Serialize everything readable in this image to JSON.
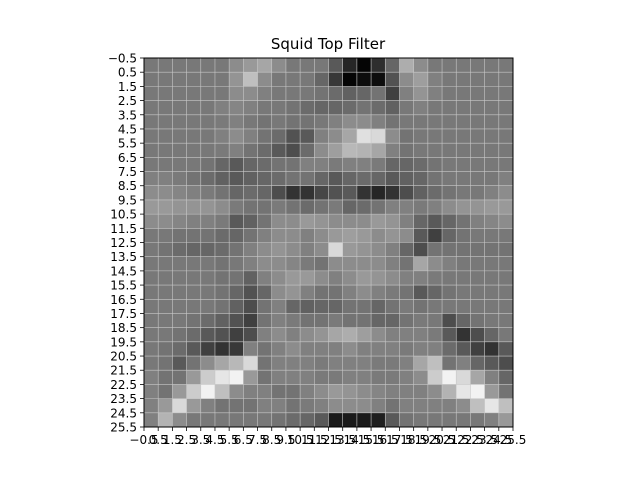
{
  "chart_data": {
    "type": "heatmap",
    "title": "Squid Top Filter",
    "xlabel": "",
    "ylabel": "",
    "colormap": "gray",
    "grid": true,
    "grid_color": "#c8c8c8",
    "x_tick_labels": [
      "−0.5",
      "0.5",
      "1.5",
      "2.5",
      "3.5",
      "4.5",
      "5.5",
      "6.5",
      "7.5",
      "8.5",
      "9.5",
      "10.5",
      "11.5",
      "12.5",
      "13.5",
      "14.5",
      "15.5",
      "16.5",
      "17.5",
      "18.5",
      "19.5",
      "20.5",
      "21.5",
      "22.5",
      "23.5",
      "24.5",
      "25.5"
    ],
    "y_tick_labels": [
      "−0.5",
      "0.5",
      "1.5",
      "2.5",
      "3.5",
      "4.5",
      "5.5",
      "6.5",
      "7.5",
      "8.5",
      "9.5",
      "10.5",
      "11.5",
      "12.5",
      "13.5",
      "14.5",
      "15.5",
      "16.5",
      "17.5",
      "18.5",
      "19.5",
      "20.5",
      "21.5",
      "22.5",
      "23.5",
      "24.5",
      "25.5"
    ],
    "xlim": [
      -0.5,
      25.5
    ],
    "ylim": [
      25.5,
      -0.5
    ],
    "values": [
      [
        0.47,
        0.47,
        0.47,
        0.47,
        0.47,
        0.47,
        0.55,
        0.6,
        0.65,
        0.55,
        0.47,
        0.47,
        0.47,
        0.35,
        0.15,
        0.02,
        0.18,
        0.4,
        0.68,
        0.55,
        0.47,
        0.47,
        0.47,
        0.47,
        0.47,
        0.47
      ],
      [
        0.47,
        0.47,
        0.47,
        0.47,
        0.47,
        0.47,
        0.58,
        0.75,
        0.55,
        0.47,
        0.47,
        0.47,
        0.4,
        0.22,
        0.02,
        0.05,
        0.05,
        0.32,
        0.55,
        0.62,
        0.5,
        0.47,
        0.47,
        0.47,
        0.47,
        0.47
      ],
      [
        0.47,
        0.47,
        0.47,
        0.47,
        0.47,
        0.47,
        0.55,
        0.55,
        0.5,
        0.47,
        0.47,
        0.47,
        0.45,
        0.42,
        0.38,
        0.4,
        0.45,
        0.25,
        0.5,
        0.58,
        0.5,
        0.47,
        0.47,
        0.47,
        0.47,
        0.47
      ],
      [
        0.47,
        0.47,
        0.47,
        0.47,
        0.47,
        0.5,
        0.52,
        0.5,
        0.47,
        0.47,
        0.45,
        0.42,
        0.4,
        0.4,
        0.42,
        0.45,
        0.42,
        0.38,
        0.47,
        0.5,
        0.47,
        0.47,
        0.47,
        0.47,
        0.47,
        0.47
      ],
      [
        0.47,
        0.47,
        0.47,
        0.47,
        0.47,
        0.48,
        0.5,
        0.47,
        0.45,
        0.47,
        0.45,
        0.45,
        0.47,
        0.5,
        0.55,
        0.55,
        0.5,
        0.45,
        0.47,
        0.47,
        0.47,
        0.47,
        0.47,
        0.47,
        0.47,
        0.47
      ],
      [
        0.47,
        0.47,
        0.47,
        0.47,
        0.47,
        0.5,
        0.55,
        0.5,
        0.45,
        0.42,
        0.32,
        0.35,
        0.5,
        0.55,
        0.65,
        0.88,
        0.85,
        0.55,
        0.45,
        0.47,
        0.47,
        0.47,
        0.47,
        0.47,
        0.47,
        0.47
      ],
      [
        0.47,
        0.47,
        0.47,
        0.47,
        0.47,
        0.48,
        0.5,
        0.45,
        0.42,
        0.35,
        0.3,
        0.42,
        0.55,
        0.62,
        0.72,
        0.7,
        0.65,
        0.5,
        0.45,
        0.47,
        0.47,
        0.47,
        0.47,
        0.47,
        0.47,
        0.47
      ],
      [
        0.47,
        0.47,
        0.47,
        0.47,
        0.45,
        0.4,
        0.35,
        0.4,
        0.42,
        0.45,
        0.45,
        0.5,
        0.5,
        0.48,
        0.5,
        0.5,
        0.48,
        0.4,
        0.4,
        0.42,
        0.45,
        0.47,
        0.47,
        0.47,
        0.47,
        0.47
      ],
      [
        0.5,
        0.5,
        0.48,
        0.45,
        0.42,
        0.38,
        0.35,
        0.38,
        0.4,
        0.42,
        0.45,
        0.45,
        0.4,
        0.35,
        0.4,
        0.42,
        0.4,
        0.35,
        0.38,
        0.4,
        0.45,
        0.47,
        0.47,
        0.47,
        0.47,
        0.5
      ],
      [
        0.55,
        0.55,
        0.52,
        0.5,
        0.48,
        0.45,
        0.4,
        0.42,
        0.4,
        0.3,
        0.2,
        0.2,
        0.28,
        0.32,
        0.35,
        0.2,
        0.15,
        0.2,
        0.3,
        0.38,
        0.42,
        0.45,
        0.47,
        0.47,
        0.5,
        0.55
      ],
      [
        0.6,
        0.6,
        0.58,
        0.58,
        0.58,
        0.55,
        0.48,
        0.45,
        0.45,
        0.48,
        0.45,
        0.42,
        0.45,
        0.48,
        0.4,
        0.42,
        0.45,
        0.5,
        0.5,
        0.48,
        0.5,
        0.55,
        0.58,
        0.58,
        0.6,
        0.6
      ],
      [
        0.55,
        0.55,
        0.52,
        0.5,
        0.5,
        0.48,
        0.35,
        0.38,
        0.45,
        0.55,
        0.55,
        0.6,
        0.58,
        0.55,
        0.55,
        0.55,
        0.6,
        0.58,
        0.5,
        0.4,
        0.35,
        0.4,
        0.45,
        0.5,
        0.52,
        0.55
      ],
      [
        0.47,
        0.47,
        0.45,
        0.45,
        0.45,
        0.42,
        0.4,
        0.45,
        0.5,
        0.55,
        0.55,
        0.5,
        0.55,
        0.6,
        0.62,
        0.6,
        0.55,
        0.58,
        0.55,
        0.35,
        0.25,
        0.4,
        0.45,
        0.47,
        0.47,
        0.47
      ],
      [
        0.47,
        0.45,
        0.42,
        0.4,
        0.4,
        0.42,
        0.45,
        0.5,
        0.55,
        0.58,
        0.55,
        0.5,
        0.55,
        0.85,
        0.6,
        0.58,
        0.55,
        0.5,
        0.4,
        0.3,
        0.45,
        0.45,
        0.45,
        0.45,
        0.45,
        0.45
      ],
      [
        0.47,
        0.47,
        0.47,
        0.47,
        0.47,
        0.45,
        0.47,
        0.5,
        0.55,
        0.55,
        0.52,
        0.48,
        0.45,
        0.55,
        0.55,
        0.55,
        0.55,
        0.5,
        0.45,
        0.65,
        0.55,
        0.5,
        0.47,
        0.47,
        0.47,
        0.47
      ],
      [
        0.47,
        0.47,
        0.47,
        0.47,
        0.47,
        0.45,
        0.45,
        0.38,
        0.5,
        0.55,
        0.6,
        0.6,
        0.55,
        0.5,
        0.55,
        0.6,
        0.58,
        0.55,
        0.5,
        0.5,
        0.48,
        0.47,
        0.47,
        0.47,
        0.47,
        0.47
      ],
      [
        0.47,
        0.47,
        0.47,
        0.47,
        0.47,
        0.45,
        0.4,
        0.32,
        0.4,
        0.55,
        0.58,
        0.5,
        0.45,
        0.45,
        0.5,
        0.55,
        0.5,
        0.48,
        0.45,
        0.35,
        0.4,
        0.45,
        0.47,
        0.47,
        0.47,
        0.47
      ],
      [
        0.47,
        0.47,
        0.47,
        0.47,
        0.47,
        0.45,
        0.38,
        0.3,
        0.45,
        0.5,
        0.4,
        0.38,
        0.4,
        0.4,
        0.45,
        0.45,
        0.4,
        0.45,
        0.48,
        0.45,
        0.47,
        0.47,
        0.47,
        0.47,
        0.47,
        0.47
      ],
      [
        0.47,
        0.47,
        0.47,
        0.45,
        0.42,
        0.38,
        0.32,
        0.25,
        0.45,
        0.5,
        0.48,
        0.45,
        0.45,
        0.48,
        0.45,
        0.45,
        0.4,
        0.4,
        0.45,
        0.48,
        0.47,
        0.3,
        0.4,
        0.45,
        0.47,
        0.47
      ],
      [
        0.47,
        0.47,
        0.45,
        0.42,
        0.35,
        0.32,
        0.25,
        0.3,
        0.5,
        0.55,
        0.5,
        0.55,
        0.58,
        0.65,
        0.68,
        0.62,
        0.55,
        0.5,
        0.5,
        0.5,
        0.48,
        0.35,
        0.2,
        0.3,
        0.4,
        0.47
      ],
      [
        0.47,
        0.45,
        0.42,
        0.35,
        0.25,
        0.2,
        0.22,
        0.5,
        0.45,
        0.5,
        0.55,
        0.5,
        0.5,
        0.5,
        0.55,
        0.5,
        0.5,
        0.5,
        0.48,
        0.5,
        0.5,
        0.42,
        0.35,
        0.25,
        0.2,
        0.35
      ],
      [
        0.47,
        0.45,
        0.35,
        0.45,
        0.55,
        0.65,
        0.72,
        0.85,
        0.45,
        0.5,
        0.5,
        0.5,
        0.48,
        0.5,
        0.5,
        0.5,
        0.48,
        0.48,
        0.5,
        0.65,
        0.75,
        0.45,
        0.5,
        0.4,
        0.35,
        0.3
      ],
      [
        0.5,
        0.45,
        0.45,
        0.6,
        0.8,
        0.9,
        0.95,
        0.6,
        0.45,
        0.5,
        0.5,
        0.5,
        0.48,
        0.48,
        0.5,
        0.5,
        0.48,
        0.48,
        0.5,
        0.55,
        0.8,
        0.95,
        0.85,
        0.65,
        0.5,
        0.4
      ],
      [
        0.5,
        0.45,
        0.6,
        0.8,
        0.95,
        0.75,
        0.55,
        0.5,
        0.5,
        0.45,
        0.45,
        0.5,
        0.55,
        0.6,
        0.58,
        0.55,
        0.52,
        0.5,
        0.5,
        0.5,
        0.55,
        0.7,
        0.9,
        0.95,
        0.6,
        0.45
      ],
      [
        0.5,
        0.6,
        0.85,
        0.6,
        0.5,
        0.45,
        0.45,
        0.45,
        0.5,
        0.5,
        0.45,
        0.48,
        0.5,
        0.55,
        0.55,
        0.55,
        0.5,
        0.45,
        0.5,
        0.5,
        0.5,
        0.5,
        0.55,
        0.75,
        0.9,
        0.75
      ],
      [
        0.5,
        0.7,
        0.55,
        0.47,
        0.47,
        0.47,
        0.47,
        0.47,
        0.47,
        0.45,
        0.42,
        0.4,
        0.35,
        0.1,
        0.1,
        0.1,
        0.12,
        0.35,
        0.45,
        0.47,
        0.47,
        0.47,
        0.47,
        0.47,
        0.5,
        0.6
      ]
    ]
  }
}
